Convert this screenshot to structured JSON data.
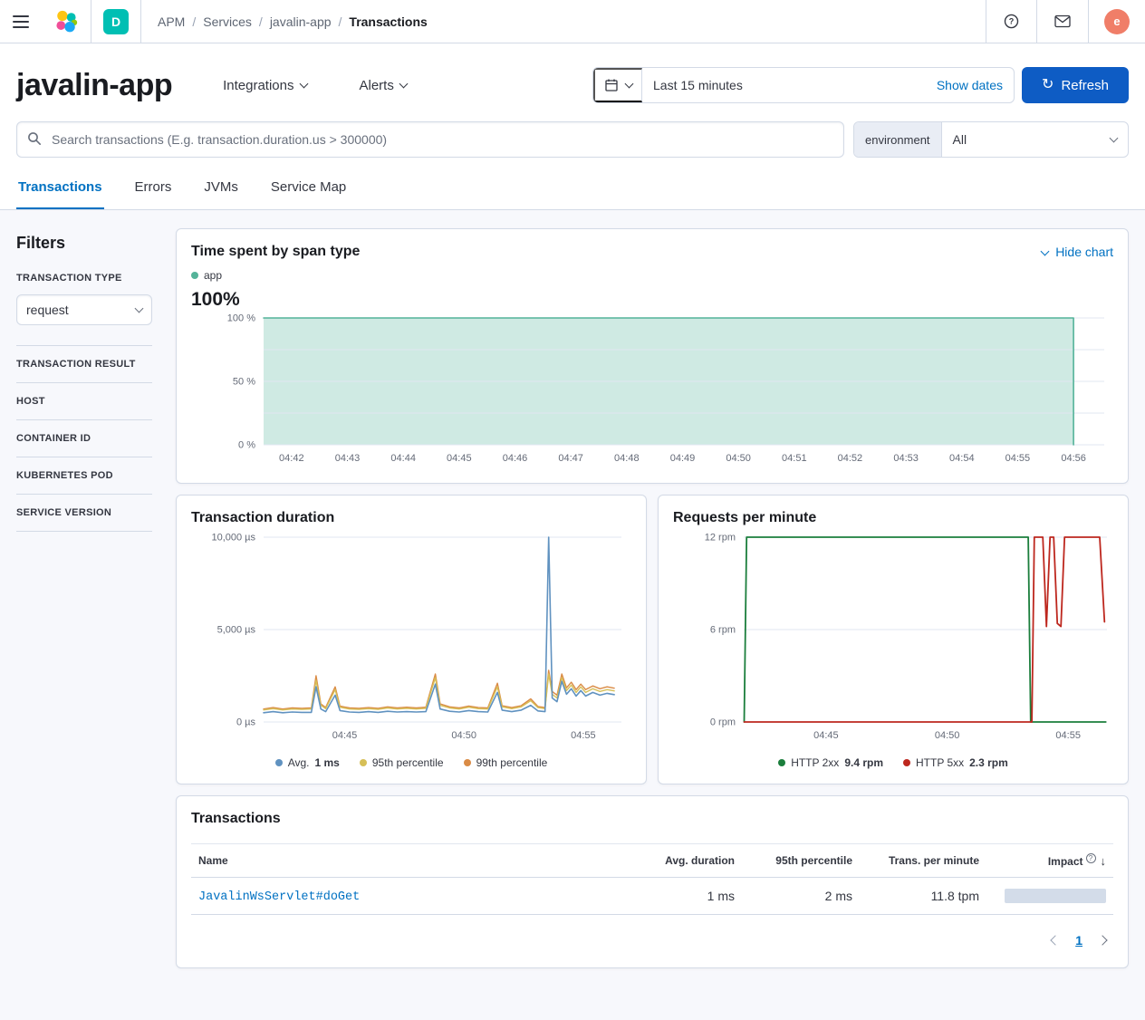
{
  "topbar": {
    "breadcrumbs": [
      "APM",
      "Services",
      "javalin-app",
      "Transactions"
    ],
    "space_badge": "D",
    "avatar_letter": "e"
  },
  "header": {
    "title": "javalin-app",
    "integrations_label": "Integrations",
    "alerts_label": "Alerts",
    "time_range": "Last 15 minutes",
    "show_dates_label": "Show dates",
    "refresh_label": "Refresh"
  },
  "search": {
    "placeholder": "Search transactions (E.g. transaction.duration.us > 300000)",
    "environment_label": "environment",
    "environment_value": "All"
  },
  "tabs": [
    {
      "label": "Transactions",
      "active": true
    },
    {
      "label": "Errors",
      "active": false
    },
    {
      "label": "JVMs",
      "active": false
    },
    {
      "label": "Service Map",
      "active": false
    }
  ],
  "filters": {
    "heading": "Filters",
    "transaction_type": {
      "label": "TRANSACTION TYPE",
      "value": "request"
    },
    "sections": [
      {
        "label": "TRANSACTION RESULT"
      },
      {
        "label": "HOST"
      },
      {
        "label": "CONTAINER ID"
      },
      {
        "label": "KUBERNETES POD"
      },
      {
        "label": "SERVICE VERSION"
      }
    ]
  },
  "panels": {
    "span": {
      "title": "Time spent by span type",
      "hide_chart_label": "Hide chart",
      "legend": [
        {
          "label": "app"
        }
      ],
      "big_value": "100%"
    },
    "duration": {
      "title": "Transaction duration",
      "legend": [
        {
          "label": "Avg.",
          "value": "1 ms"
        },
        {
          "label": "95th percentile",
          "value": ""
        },
        {
          "label": "99th percentile",
          "value": ""
        }
      ]
    },
    "rpm": {
      "title": "Requests per minute",
      "legend": [
        {
          "label": "HTTP 2xx",
          "value": "9.4 rpm"
        },
        {
          "label": "HTTP 5xx",
          "value": "2.3 rpm"
        }
      ]
    },
    "table": {
      "title": "Transactions",
      "columns": [
        "Name",
        "Avg. duration",
        "95th percentile",
        "Trans. per minute",
        "Impact"
      ],
      "rows": [
        {
          "name": "JavalinWsServlet#doGet",
          "avg_duration": "1 ms",
          "p95": "2 ms",
          "tpm": "11.8 tpm",
          "impact_pct": 100
        }
      ],
      "pagination": {
        "current_page": "1"
      }
    }
  },
  "chart_data": [
    {
      "id": "span-type",
      "type": "area",
      "title": "Time spent by span type",
      "x_unit": "minutes after 04:40",
      "x_domain": [
        1.5,
        16.55
      ],
      "y_domain": [
        0,
        100
      ],
      "grid_y": [
        0,
        25,
        50,
        75,
        100
      ],
      "y_ticks": [
        {
          "v": 100,
          "label": "100 %"
        },
        {
          "v": 50,
          "label": "50 %"
        },
        {
          "v": 0,
          "label": "0 %"
        }
      ],
      "x_ticks": [
        {
          "v": 2,
          "label": "04:42"
        },
        {
          "v": 3,
          "label": "04:43"
        },
        {
          "v": 4,
          "label": "04:44"
        },
        {
          "v": 5,
          "label": "04:45"
        },
        {
          "v": 6,
          "label": "04:46"
        },
        {
          "v": 7,
          "label": "04:47"
        },
        {
          "v": 8,
          "label": "04:48"
        },
        {
          "v": 9,
          "label": "04:49"
        },
        {
          "v": 10,
          "label": "04:50"
        },
        {
          "v": 11,
          "label": "04:51"
        },
        {
          "v": 12,
          "label": "04:52"
        },
        {
          "v": 13,
          "label": "04:53"
        },
        {
          "v": 14,
          "label": "04:54"
        },
        {
          "v": 15,
          "label": "04:55"
        },
        {
          "v": 16,
          "label": "04:56"
        }
      ],
      "series": [
        {
          "name": "app",
          "color": "#54B399",
          "fill": "rgba(84,179,153,0.28)",
          "width": 1.6,
          "points": [
            [
              1.5,
              100
            ],
            [
              16.0,
              100
            ],
            [
              16.0,
              0
            ]
          ]
        }
      ]
    },
    {
      "id": "transaction-duration",
      "type": "line",
      "title": "Transaction duration",
      "x_unit": "minutes after 04:40",
      "y_unit": "µs",
      "x_domain": [
        1.6,
        16.6
      ],
      "y_domain": [
        0,
        10000
      ],
      "grid_y": [
        0,
        5000,
        10000
      ],
      "y_ticks": [
        {
          "v": 10000,
          "label": "10,000 µs"
        },
        {
          "v": 5000,
          "label": "5,000 µs"
        },
        {
          "v": 0,
          "label": "0 µs"
        }
      ],
      "x_ticks": [
        {
          "v": 5,
          "label": "04:45"
        },
        {
          "v": 10,
          "label": "04:50"
        },
        {
          "v": 15,
          "label": "04:55"
        }
      ],
      "series": [
        {
          "name": "99th percentile",
          "color": "#DA8B45",
          "width": 1.4,
          "points": [
            [
              1.6,
              700
            ],
            [
              2.0,
              780
            ],
            [
              2.4,
              700
            ],
            [
              2.8,
              760
            ],
            [
              3.2,
              740
            ],
            [
              3.6,
              760
            ],
            [
              3.8,
              2500
            ],
            [
              4.0,
              980
            ],
            [
              4.2,
              780
            ],
            [
              4.6,
              1900
            ],
            [
              4.8,
              860
            ],
            [
              5.2,
              760
            ],
            [
              5.6,
              740
            ],
            [
              6.0,
              780
            ],
            [
              6.4,
              740
            ],
            [
              6.8,
              820
            ],
            [
              7.2,
              760
            ],
            [
              7.6,
              800
            ],
            [
              8.0,
              760
            ],
            [
              8.4,
              800
            ],
            [
              8.8,
              2600
            ],
            [
              9.0,
              980
            ],
            [
              9.4,
              820
            ],
            [
              9.8,
              760
            ],
            [
              10.2,
              860
            ],
            [
              10.6,
              780
            ],
            [
              11.0,
              760
            ],
            [
              11.4,
              2100
            ],
            [
              11.6,
              880
            ],
            [
              12.0,
              780
            ],
            [
              12.4,
              880
            ],
            [
              12.8,
              1250
            ],
            [
              13.1,
              840
            ],
            [
              13.4,
              780
            ],
            [
              13.55,
              2800
            ],
            [
              13.7,
              1650
            ],
            [
              13.9,
              1450
            ],
            [
              14.1,
              2600
            ],
            [
              14.3,
              1850
            ],
            [
              14.5,
              2150
            ],
            [
              14.7,
              1750
            ],
            [
              14.9,
              2050
            ],
            [
              15.1,
              1750
            ],
            [
              15.4,
              1950
            ],
            [
              15.7,
              1800
            ],
            [
              16.0,
              1900
            ],
            [
              16.3,
              1830
            ]
          ]
        },
        {
          "name": "95th percentile",
          "color": "#D6BF57",
          "width": 1.4,
          "points": [
            [
              1.6,
              650
            ],
            [
              2.0,
              720
            ],
            [
              2.4,
              650
            ],
            [
              2.8,
              700
            ],
            [
              3.2,
              680
            ],
            [
              3.6,
              700
            ],
            [
              3.8,
              2250
            ],
            [
              4.0,
              900
            ],
            [
              4.2,
              720
            ],
            [
              4.6,
              1750
            ],
            [
              4.8,
              800
            ],
            [
              5.2,
              700
            ],
            [
              5.6,
              680
            ],
            [
              6.0,
              720
            ],
            [
              6.4,
              680
            ],
            [
              6.8,
              760
            ],
            [
              7.2,
              700
            ],
            [
              7.6,
              740
            ],
            [
              8.0,
              700
            ],
            [
              8.4,
              740
            ],
            [
              8.8,
              2400
            ],
            [
              9.0,
              900
            ],
            [
              9.4,
              760
            ],
            [
              9.8,
              700
            ],
            [
              10.2,
              800
            ],
            [
              10.6,
              720
            ],
            [
              11.0,
              700
            ],
            [
              11.4,
              1900
            ],
            [
              11.6,
              820
            ],
            [
              12.0,
              720
            ],
            [
              12.4,
              820
            ],
            [
              12.8,
              1150
            ],
            [
              13.1,
              780
            ],
            [
              13.4,
              720
            ],
            [
              13.55,
              2600
            ],
            [
              13.7,
              1500
            ],
            [
              13.9,
              1300
            ],
            [
              14.1,
              2400
            ],
            [
              14.3,
              1700
            ],
            [
              14.5,
              2000
            ],
            [
              14.7,
              1600
            ],
            [
              14.9,
              1900
            ],
            [
              15.1,
              1600
            ],
            [
              15.4,
              1800
            ],
            [
              15.7,
              1650
            ],
            [
              16.0,
              1750
            ],
            [
              16.3,
              1680
            ]
          ]
        },
        {
          "name": "Avg.",
          "color": "#6092C0",
          "width": 1.6,
          "points": [
            [
              1.6,
              500
            ],
            [
              2.0,
              560
            ],
            [
              2.4,
              500
            ],
            [
              2.8,
              540
            ],
            [
              3.2,
              520
            ],
            [
              3.6,
              520
            ],
            [
              3.8,
              1900
            ],
            [
              4.0,
              700
            ],
            [
              4.2,
              560
            ],
            [
              4.6,
              1450
            ],
            [
              4.8,
              620
            ],
            [
              5.2,
              540
            ],
            [
              5.6,
              520
            ],
            [
              6.0,
              560
            ],
            [
              6.4,
              520
            ],
            [
              6.8,
              580
            ],
            [
              7.2,
              540
            ],
            [
              7.6,
              560
            ],
            [
              8.0,
              540
            ],
            [
              8.4,
              560
            ],
            [
              8.8,
              2050
            ],
            [
              9.0,
              700
            ],
            [
              9.4,
              580
            ],
            [
              9.8,
              540
            ],
            [
              10.2,
              620
            ],
            [
              10.6,
              560
            ],
            [
              11.0,
              540
            ],
            [
              11.4,
              1600
            ],
            [
              11.6,
              640
            ],
            [
              12.0,
              560
            ],
            [
              12.4,
              640
            ],
            [
              12.8,
              900
            ],
            [
              13.1,
              600
            ],
            [
              13.4,
              560
            ],
            [
              13.55,
              10000
            ],
            [
              13.7,
              1300
            ],
            [
              13.9,
              1100
            ],
            [
              14.1,
              2200
            ],
            [
              14.3,
              1500
            ],
            [
              14.5,
              1800
            ],
            [
              14.7,
              1400
            ],
            [
              14.9,
              1700
            ],
            [
              15.1,
              1400
            ],
            [
              15.4,
              1600
            ],
            [
              15.7,
              1450
            ],
            [
              16.0,
              1550
            ],
            [
              16.3,
              1480
            ]
          ]
        }
      ]
    },
    {
      "id": "requests-per-minute",
      "type": "line",
      "title": "Requests per minute",
      "x_unit": "minutes after 04:40",
      "y_unit": "rpm",
      "x_domain": [
        1.6,
        16.6
      ],
      "y_domain": [
        0,
        12
      ],
      "grid_y": [
        0,
        6,
        12
      ],
      "y_ticks": [
        {
          "v": 12,
          "label": "12 rpm"
        },
        {
          "v": 6,
          "label": "6 rpm"
        },
        {
          "v": 0,
          "label": "0 rpm"
        }
      ],
      "x_ticks": [
        {
          "v": 5,
          "label": "04:45"
        },
        {
          "v": 10,
          "label": "04:50"
        },
        {
          "v": 15,
          "label": "04:55"
        }
      ],
      "series": [
        {
          "name": "HTTP 2xx",
          "color": "#1B7E3C",
          "width": 1.8,
          "points": [
            [
              1.62,
              0
            ],
            [
              1.72,
              12
            ],
            [
              13.35,
              12
            ],
            [
              13.45,
              0
            ],
            [
              16.55,
              0
            ]
          ]
        },
        {
          "name": "HTTP 5xx",
          "color": "#BD271E",
          "width": 1.8,
          "points": [
            [
              1.62,
              0
            ],
            [
              13.5,
              0
            ],
            [
              13.6,
              12
            ],
            [
              13.95,
              12
            ],
            [
              14.1,
              6.2
            ],
            [
              14.25,
              12
            ],
            [
              14.4,
              12
            ],
            [
              14.55,
              6.4
            ],
            [
              14.7,
              6.2
            ],
            [
              14.85,
              12
            ],
            [
              16.3,
              12
            ],
            [
              16.5,
              6.5
            ]
          ]
        }
      ]
    }
  ]
}
